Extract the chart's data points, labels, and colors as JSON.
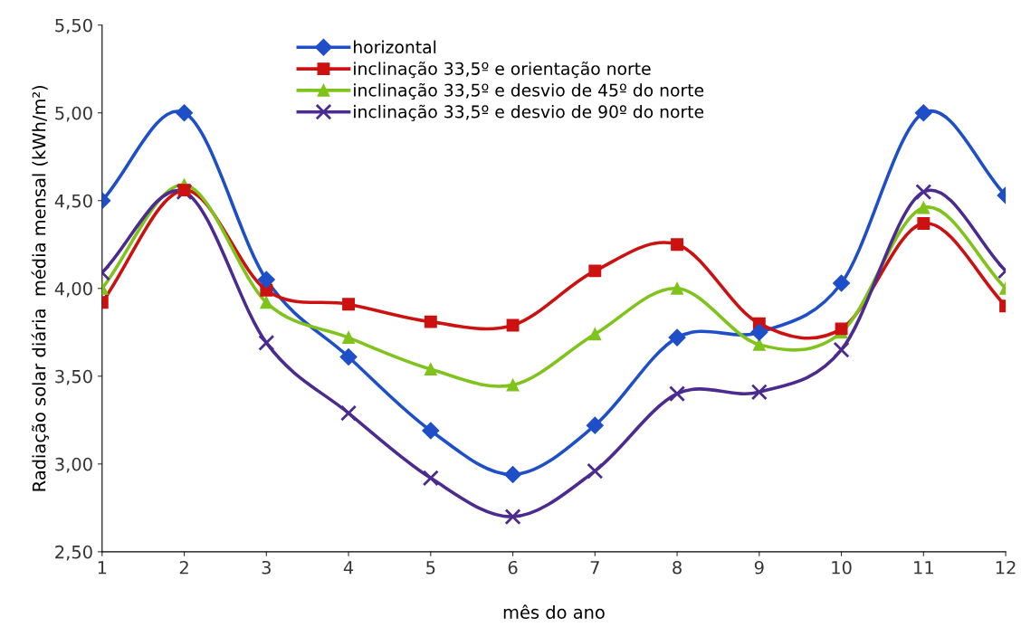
{
  "chart_data": {
    "type": "line",
    "xlabel": "mês do ano",
    "ylabel": "Radiação solar diária  média mensal (kWh/m²)",
    "x": [
      1,
      2,
      3,
      4,
      5,
      6,
      7,
      8,
      9,
      10,
      11,
      12
    ],
    "series": [
      {
        "name": "horizontal",
        "color": "#1f4fc8",
        "marker": "diamond",
        "values": [
          4.5,
          5.0,
          4.05,
          3.61,
          3.19,
          2.94,
          3.22,
          3.72,
          3.75,
          4.03,
          5.0,
          4.53
        ]
      },
      {
        "name": "inclinação 33,5º e orientação norte",
        "color": "#cc1111",
        "marker": "square",
        "values": [
          3.92,
          4.56,
          3.99,
          3.91,
          3.81,
          3.79,
          4.1,
          4.25,
          3.8,
          3.77,
          4.37,
          3.9
        ]
      },
      {
        "name": "inclinação 33,5º e desvio de 45º do norte",
        "color": "#7fc31c",
        "marker": "triangle",
        "values": [
          4.0,
          4.59,
          3.92,
          3.72,
          3.54,
          3.45,
          3.74,
          4.0,
          3.68,
          3.75,
          4.46,
          4.0
        ]
      },
      {
        "name": "inclinação 33,5º e desvio de 90º do norte",
        "color": "#4b2b8f",
        "marker": "cross",
        "values": [
          4.09,
          4.55,
          3.69,
          3.29,
          2.92,
          2.7,
          2.96,
          3.4,
          3.41,
          3.65,
          4.55,
          4.1
        ]
      }
    ],
    "xlim": [
      1,
      12
    ],
    "xticks": [
      1,
      2,
      3,
      4,
      5,
      6,
      7,
      8,
      9,
      10,
      11,
      12
    ],
    "ylim": [
      2.5,
      5.5
    ],
    "yticks": [
      {
        "value": 2.5,
        "label": "2,50"
      },
      {
        "value": 3.0,
        "label": "3,00"
      },
      {
        "value": 3.5,
        "label": "3,50"
      },
      {
        "value": 4.0,
        "label": "4,00"
      },
      {
        "value": 4.5,
        "label": "4,50"
      },
      {
        "value": 5.0,
        "label": "5,00"
      },
      {
        "value": 5.5,
        "label": "5,50"
      }
    ],
    "grid": false,
    "legend": "top",
    "line_style": "solid"
  }
}
